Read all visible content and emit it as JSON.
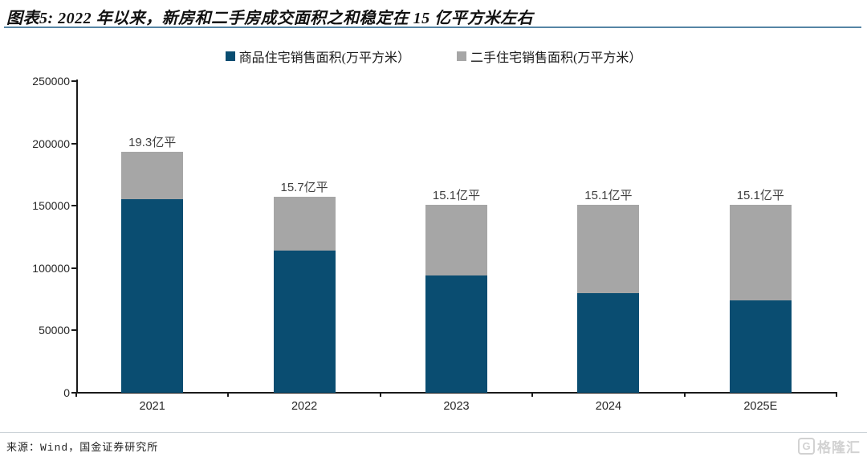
{
  "header": {
    "title": "图表5: 2022 年以来，新房和二手房成交面积之和稳定在 15 亿平方米左右"
  },
  "chart_data": {
    "type": "bar",
    "stacked": true,
    "title": "",
    "xlabel": "",
    "ylabel": "",
    "categories": [
      "2021",
      "2022",
      "2023",
      "2024",
      "2025E"
    ],
    "series": [
      {
        "name": "商品住宅销售面积(万平方米）",
        "color": "#0a4d71",
        "values": [
          155000,
          114000,
          94000,
          80000,
          74000
        ]
      },
      {
        "name": "二手住宅销售面积(万平方米）",
        "color": "#a6a6a6",
        "values": [
          38000,
          43000,
          57000,
          71000,
          77000
        ]
      }
    ],
    "bar_labels": [
      "19.3亿平",
      "15.7亿平",
      "15.1亿平",
      "15.1亿平",
      "15.1亿平"
    ],
    "ylim": [
      0,
      250000
    ],
    "yticks": [
      0,
      50000,
      100000,
      150000,
      200000,
      250000
    ],
    "legend_position": "top",
    "grid": false
  },
  "colors": {
    "new_home_bar": "#0a4d71",
    "second_hand_bar": "#a6a6a6",
    "title_rule": "#5585a5",
    "axis": "#1a1a1a"
  },
  "footer": {
    "source": "来源：Wind，国金证券研究所"
  },
  "watermark": {
    "icon": "G",
    "brand": "格隆汇"
  }
}
